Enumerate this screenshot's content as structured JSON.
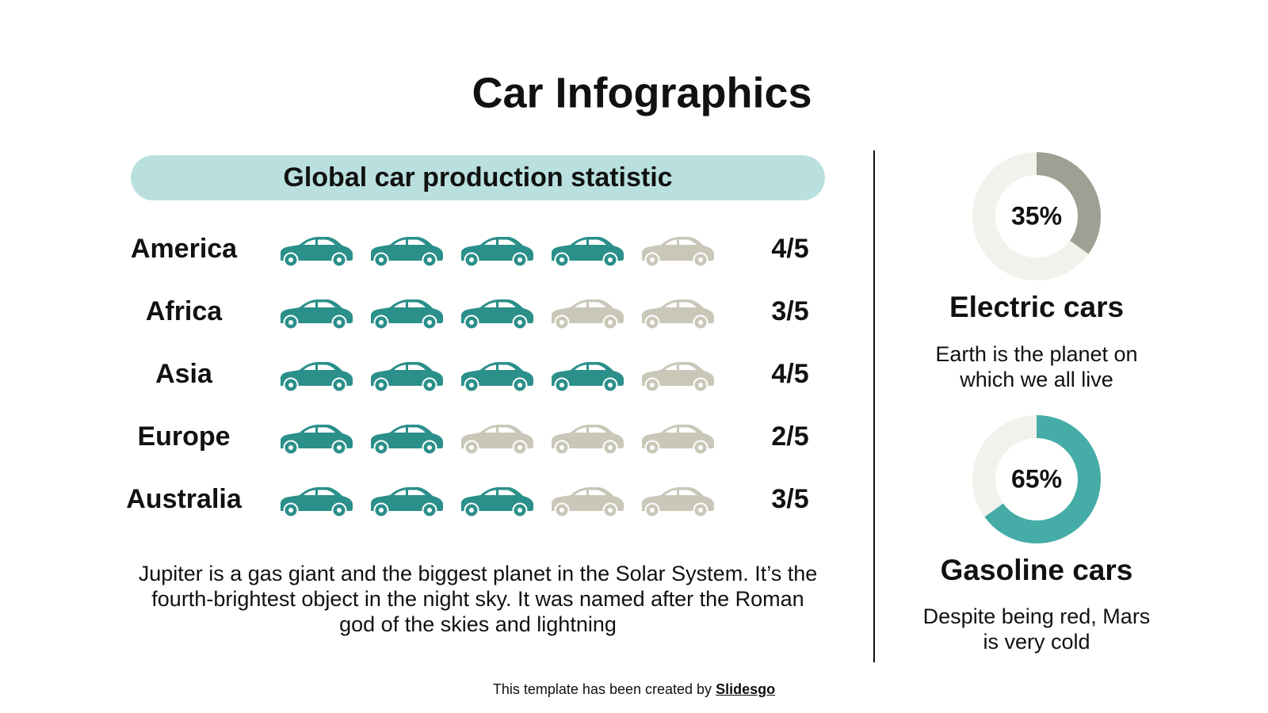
{
  "title": "Car Infographics",
  "chart_data": [
    {
      "type": "pictogram",
      "title": "Global car production statistic",
      "categories": [
        "America",
        "Africa",
        "Asia",
        "Europe",
        "Australia"
      ],
      "values": [
        4,
        3,
        4,
        2,
        3
      ],
      "value_labels": [
        "4/5",
        "3/5",
        "4/5",
        "2/5",
        "3/5"
      ],
      "max": 5,
      "color": "#2b8f8a",
      "empty_color": "#c9c7b8",
      "description": "Jupiter is a gas giant and the biggest planet in the Solar System. It’s the fourth-brightest object in the night sky. It was named after the Roman god of the skies and lightning"
    },
    {
      "type": "donut",
      "title": "Electric cars",
      "description": "Earth is the planet on which we all live",
      "values": [
        35
      ],
      "value_labels": [
        "35%"
      ],
      "color": "#a09f93",
      "track_color": "#f2f2ec"
    },
    {
      "type": "donut",
      "title": "Gasoline cars",
      "description": "Despite being red, Mars is very cold",
      "values": [
        65
      ],
      "value_labels": [
        "65%"
      ],
      "color": "#45aca7",
      "track_color": "#f2f2ec"
    }
  ],
  "footer": {
    "text": "This template has been created by",
    "link": "Slidesgo"
  }
}
